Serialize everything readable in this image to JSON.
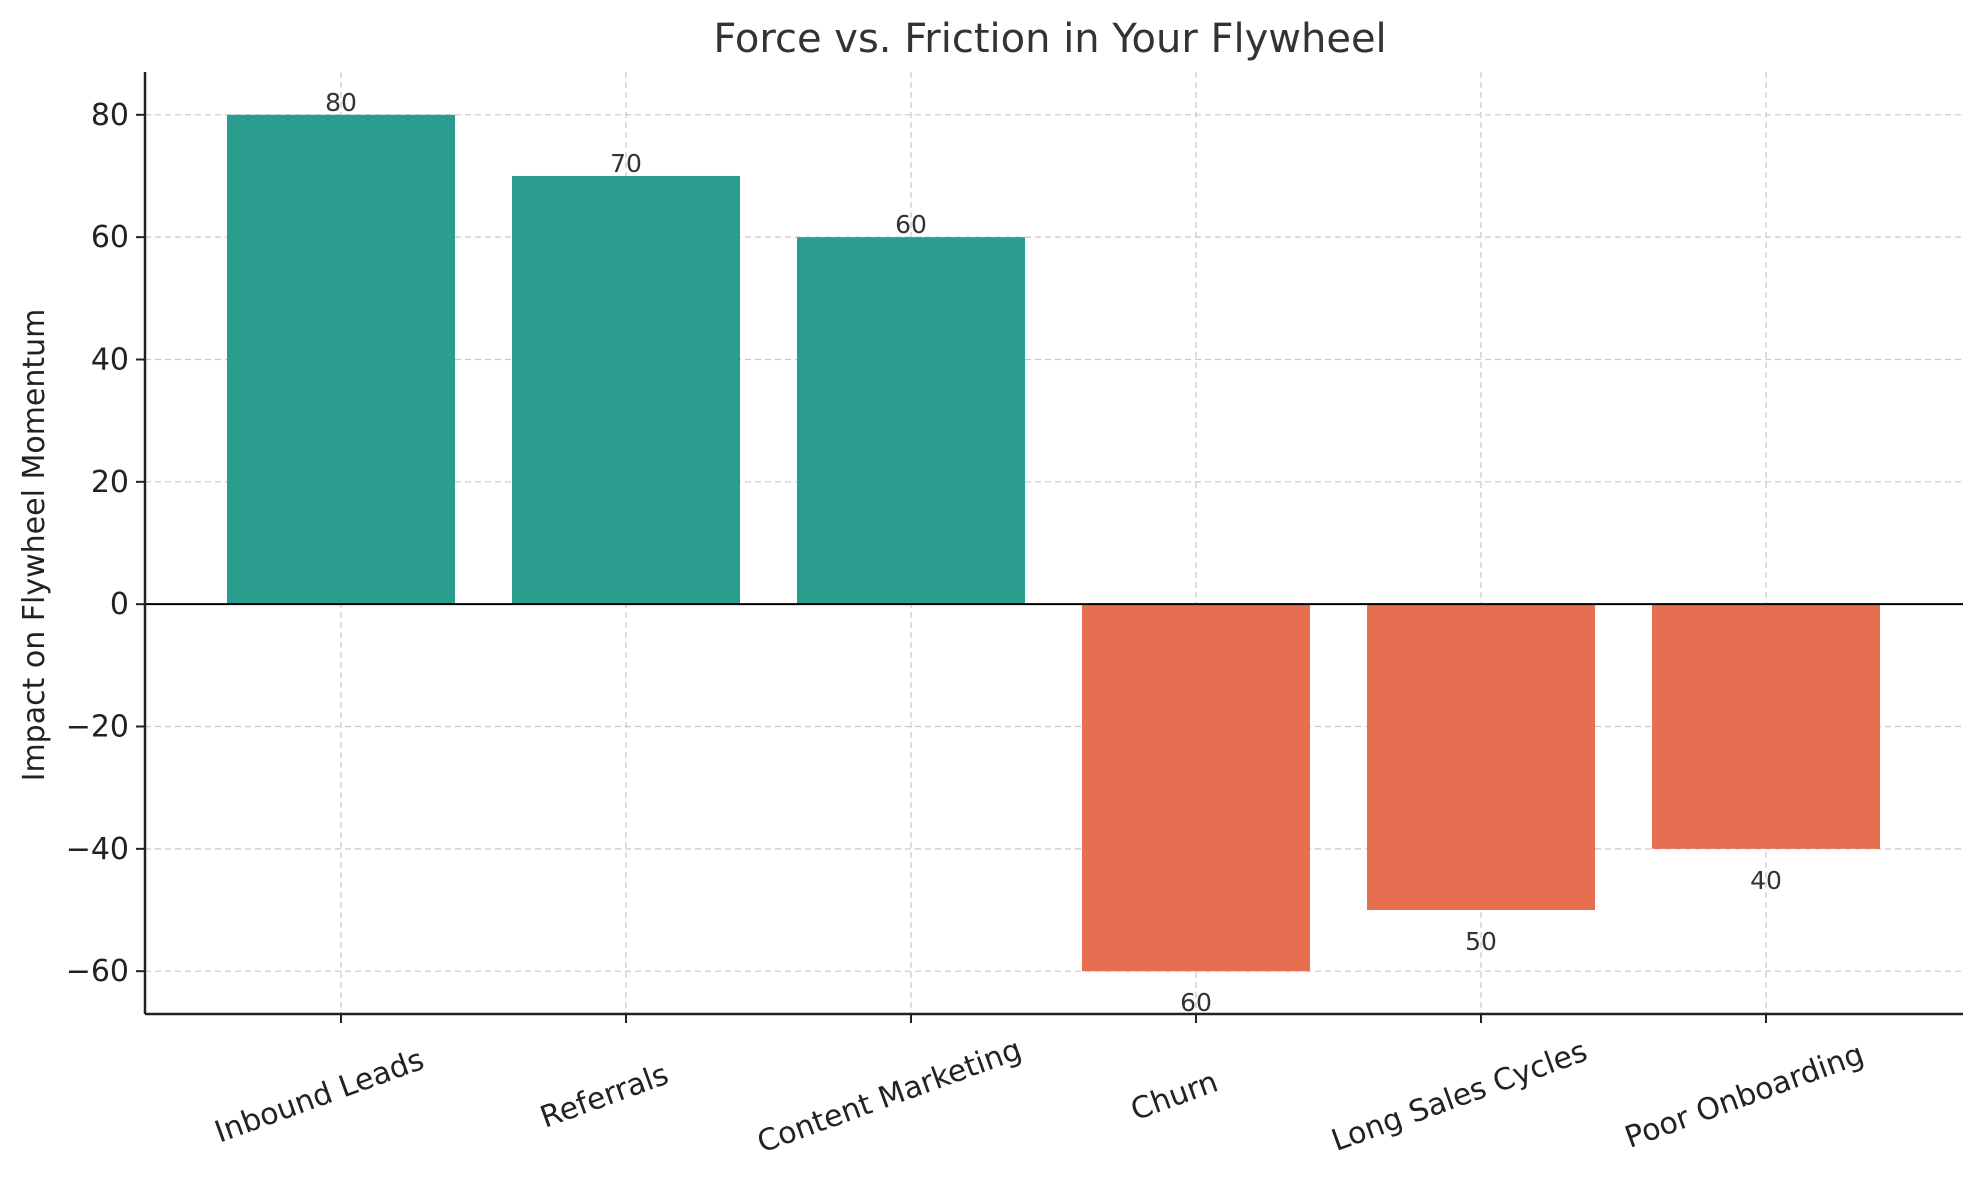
{
  "chart_data": {
    "type": "bar",
    "title": "Force vs. Friction in Your Flywheel",
    "xlabel": "",
    "ylabel": "Impact on Flywheel Momentum",
    "categories": [
      "Inbound Leads",
      "Referrals",
      "Content Marketing",
      "Churn",
      "Long Sales Cycles",
      "Poor Onboarding"
    ],
    "values": [
      80,
      70,
      60,
      -60,
      -50,
      -40
    ],
    "data_labels": [
      "80",
      "70",
      "60",
      "60",
      "50",
      "40"
    ],
    "ylim": [
      -67,
      87
    ],
    "yticks": [
      80,
      60,
      40,
      20,
      0,
      -20,
      -40,
      -60
    ],
    "ytick_labels": [
      "80",
      "60",
      "40",
      "20",
      "0",
      "−20",
      "−40",
      "−60"
    ],
    "colors": {
      "positive": "#2a9d8f",
      "negative": "#e76f51"
    },
    "grid": true,
    "legend": "none"
  }
}
